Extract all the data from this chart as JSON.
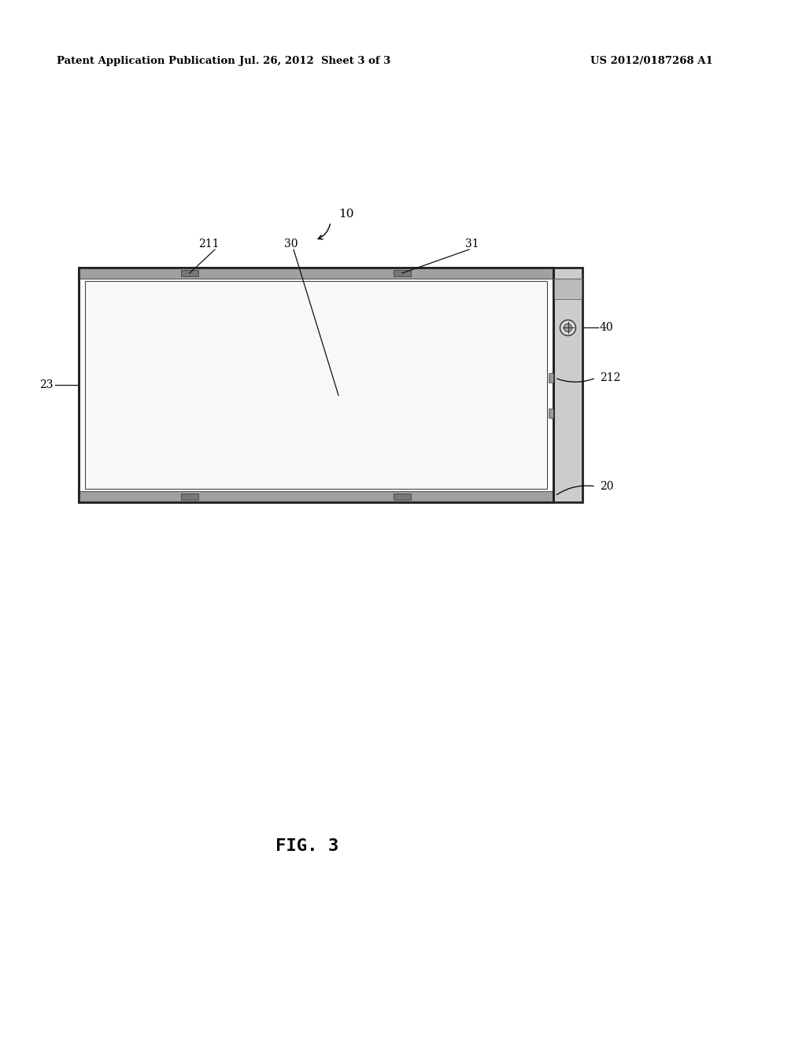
{
  "bg_color": "#ffffff",
  "header_left": "Patent Application Publication",
  "header_mid": "Jul. 26, 2012  Sheet 3 of 3",
  "header_right": "US 2012/0187268 A1",
  "fig_label": "FIG. 3",
  "label_10": "10",
  "label_20": "20",
  "label_23": "23",
  "label_30": "30",
  "label_31": "31",
  "label_40": "40",
  "label_211": "211",
  "label_212": "212"
}
